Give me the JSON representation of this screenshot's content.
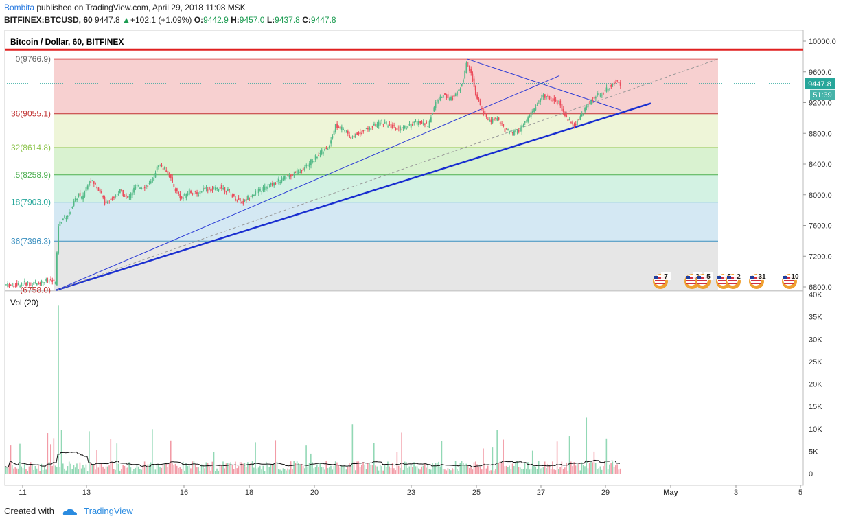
{
  "header": {
    "author": "Bombita",
    "published_text": "published on TradingView.com, April 29, 2018 11:08 MSK",
    "symbol": "BITFINEX:BTCUSD, 60",
    "last": "9447.8",
    "arrow": "▲",
    "change": "+102.1 (+1.09%)",
    "o_label": "O:",
    "o_val": "9442.9",
    "h_label": "H:",
    "h_val": "9457.0",
    "l_label": "L:",
    "l_val": "9437.8",
    "c_label": "C:",
    "c_val": "9447.8"
  },
  "footer": {
    "created_with": "Created with",
    "brand": "TradingView"
  },
  "chart_data": {
    "type": "candlestick",
    "title": "Bitcoin / Dollar, 60, BITFINEX",
    "volume_title": "Vol (20)",
    "price_axis": {
      "ticks": [
        10000.0,
        9600.0,
        9200.0,
        8800.0,
        8400.0,
        8000.0,
        7600.0,
        7200.0,
        6800.0
      ],
      "ylim": [
        6750,
        10150
      ]
    },
    "volume_axis": {
      "ticks": [
        "40K",
        "35K",
        "30K",
        "25K",
        "20K",
        "15K",
        "10K",
        "5K",
        "0"
      ],
      "ylim": [
        0,
        40000
      ]
    },
    "x_ticks": [
      "11",
      "13",
      "16",
      "18",
      "20",
      "23",
      "25",
      "27",
      "29",
      "May",
      "3",
      "5"
    ],
    "last_price_label": "9447.8",
    "countdown_label": "51:39",
    "resistance_level": 9890,
    "fib_levels": [
      {
        "label": "0(9766.9)",
        "value": 9766.9,
        "fill": "#f7d0d0",
        "line": "#e06060"
      },
      {
        "label": "36(9055.1)",
        "value": 9055.1,
        "fill": "#eef5d8",
        "line": "#c03030"
      },
      {
        "label": "32(8614.8)",
        "value": 8614.8,
        "fill": "#d9f2d0",
        "line": "#8bc34a"
      },
      {
        "label": ".5(8258.9)",
        "value": 8258.9,
        "fill": "#d3f2e3",
        "line": "#4caf50"
      },
      {
        "label": "18(7903.0)",
        "value": 7903.0,
        "fill": "#d4e8f3",
        "line": "#26a69a"
      },
      {
        "label": "36(7396.3)",
        "value": 7396.3,
        "fill": "#e6e6e6",
        "line": "#3a8fbf"
      },
      {
        "label": "(6758.0)",
        "value": 6758.0,
        "fill": "",
        "line": ""
      }
    ],
    "close_path": [
      [
        0,
        6830
      ],
      [
        5,
        6820
      ],
      [
        10,
        6840
      ],
      [
        15,
        6850
      ],
      [
        20,
        6840
      ],
      [
        25,
        6870
      ],
      [
        30,
        6880
      ],
      [
        33,
        6850
      ],
      [
        35,
        7600
      ],
      [
        38,
        7700
      ],
      [
        42,
        7750
      ],
      [
        45,
        7900
      ],
      [
        48,
        8000
      ],
      [
        50,
        7950
      ],
      [
        53,
        8100
      ],
      [
        55,
        8200
      ],
      [
        58,
        8150
      ],
      [
        62,
        8050
      ],
      [
        65,
        7900
      ],
      [
        70,
        7950
      ],
      [
        75,
        8050
      ],
      [
        80,
        7950
      ],
      [
        85,
        8100
      ],
      [
        90,
        8100
      ],
      [
        95,
        8150
      ],
      [
        100,
        8400
      ],
      [
        103,
        8350
      ],
      [
        106,
        8300
      ],
      [
        110,
        8100
      ],
      [
        115,
        7950
      ],
      [
        120,
        8050
      ],
      [
        125,
        8000
      ],
      [
        130,
        8100
      ],
      [
        135,
        8050
      ],
      [
        140,
        8100
      ],
      [
        145,
        8050
      ],
      [
        150,
        7950
      ],
      [
        155,
        7900
      ],
      [
        160,
        8000
      ],
      [
        165,
        8050
      ],
      [
        170,
        8100
      ],
      [
        175,
        8150
      ],
      [
        180,
        8200
      ],
      [
        185,
        8250
      ],
      [
        190,
        8300
      ],
      [
        195,
        8350
      ],
      [
        200,
        8450
      ],
      [
        205,
        8550
      ],
      [
        210,
        8600
      ],
      [
        215,
        8900
      ],
      [
        220,
        8850
      ],
      [
        225,
        8750
      ],
      [
        230,
        8800
      ],
      [
        235,
        8850
      ],
      [
        240,
        8900
      ],
      [
        245,
        8950
      ],
      [
        250,
        8900
      ],
      [
        255,
        8850
      ],
      [
        260,
        8880
      ],
      [
        265,
        8920
      ],
      [
        270,
        8950
      ],
      [
        275,
        8900
      ],
      [
        280,
        9200
      ],
      [
        285,
        9300
      ],
      [
        290,
        9250
      ],
      [
        295,
        9350
      ],
      [
        298,
        9500
      ],
      [
        300,
        9700
      ],
      [
        303,
        9600
      ],
      [
        306,
        9300
      ],
      [
        310,
        9100
      ],
      [
        315,
        8950
      ],
      [
        320,
        9000
      ],
      [
        325,
        8850
      ],
      [
        330,
        8800
      ],
      [
        335,
        8850
      ],
      [
        340,
        9000
      ],
      [
        345,
        9150
      ],
      [
        350,
        9300
      ],
      [
        355,
        9250
      ],
      [
        360,
        9200
      ],
      [
        365,
        9000
      ],
      [
        370,
        8900
      ],
      [
        375,
        9050
      ],
      [
        380,
        9200
      ],
      [
        385,
        9300
      ],
      [
        390,
        9350
      ],
      [
        395,
        9450
      ],
      [
        398,
        9500
      ],
      [
        400,
        9450
      ]
    ],
    "annotations": [
      "7",
      "2",
      "5",
      "5",
      "2",
      "31",
      "10"
    ]
  }
}
